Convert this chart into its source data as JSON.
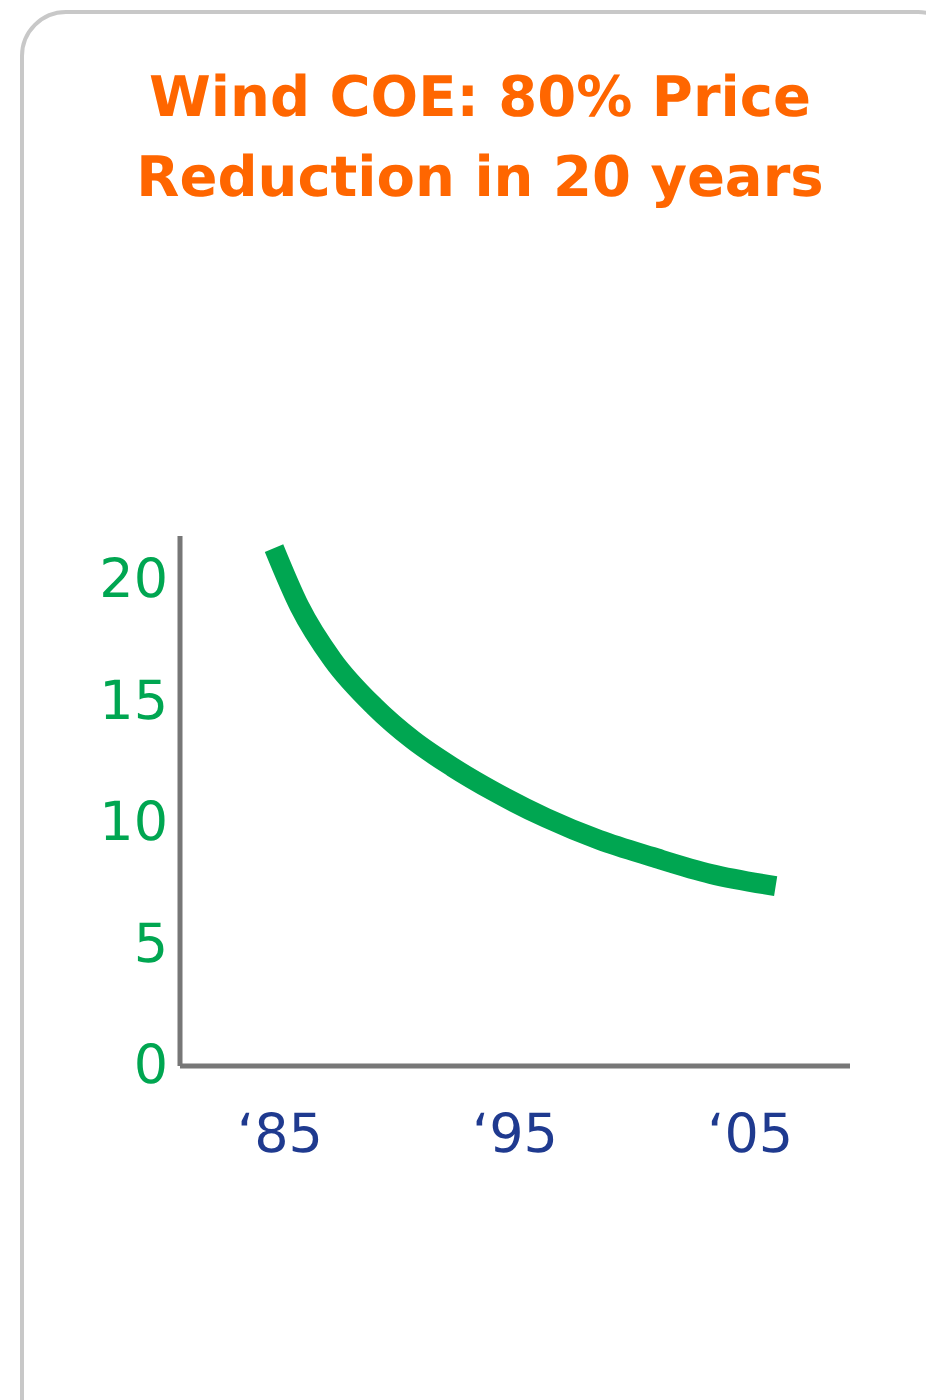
{
  "chart_data": {
    "type": "line",
    "title": "Wind COE: 80% Price Reduction in 20 years",
    "x": [
      "1984-10",
      "1985-11",
      "1987-04",
      "1989-01",
      "1990-09",
      "1992-05",
      "1994-02",
      "1996-05",
      "1998-08",
      "2000-11",
      "2003-05",
      "2006-02"
    ],
    "series": [
      {
        "color": "#00a651",
        "values": [
          21.3,
          18.9,
          16.7,
          14.8,
          13.4,
          12.3,
          11.3,
          10.2,
          9.3,
          8.6,
          7.9,
          7.4
        ]
      }
    ],
    "xlim": [
      "1980-10",
      "2009-04"
    ],
    "xticks": [
      {
        "value": "1985",
        "label": "‘85"
      },
      {
        "value": "1995",
        "label": "‘95"
      },
      {
        "value": "2005",
        "label": "‘05"
      }
    ],
    "ylim": [
      0,
      21.8
    ],
    "yticks": [
      0,
      5,
      10,
      15,
      20
    ],
    "grid": false,
    "marker": "none",
    "line_style": "solid"
  }
}
